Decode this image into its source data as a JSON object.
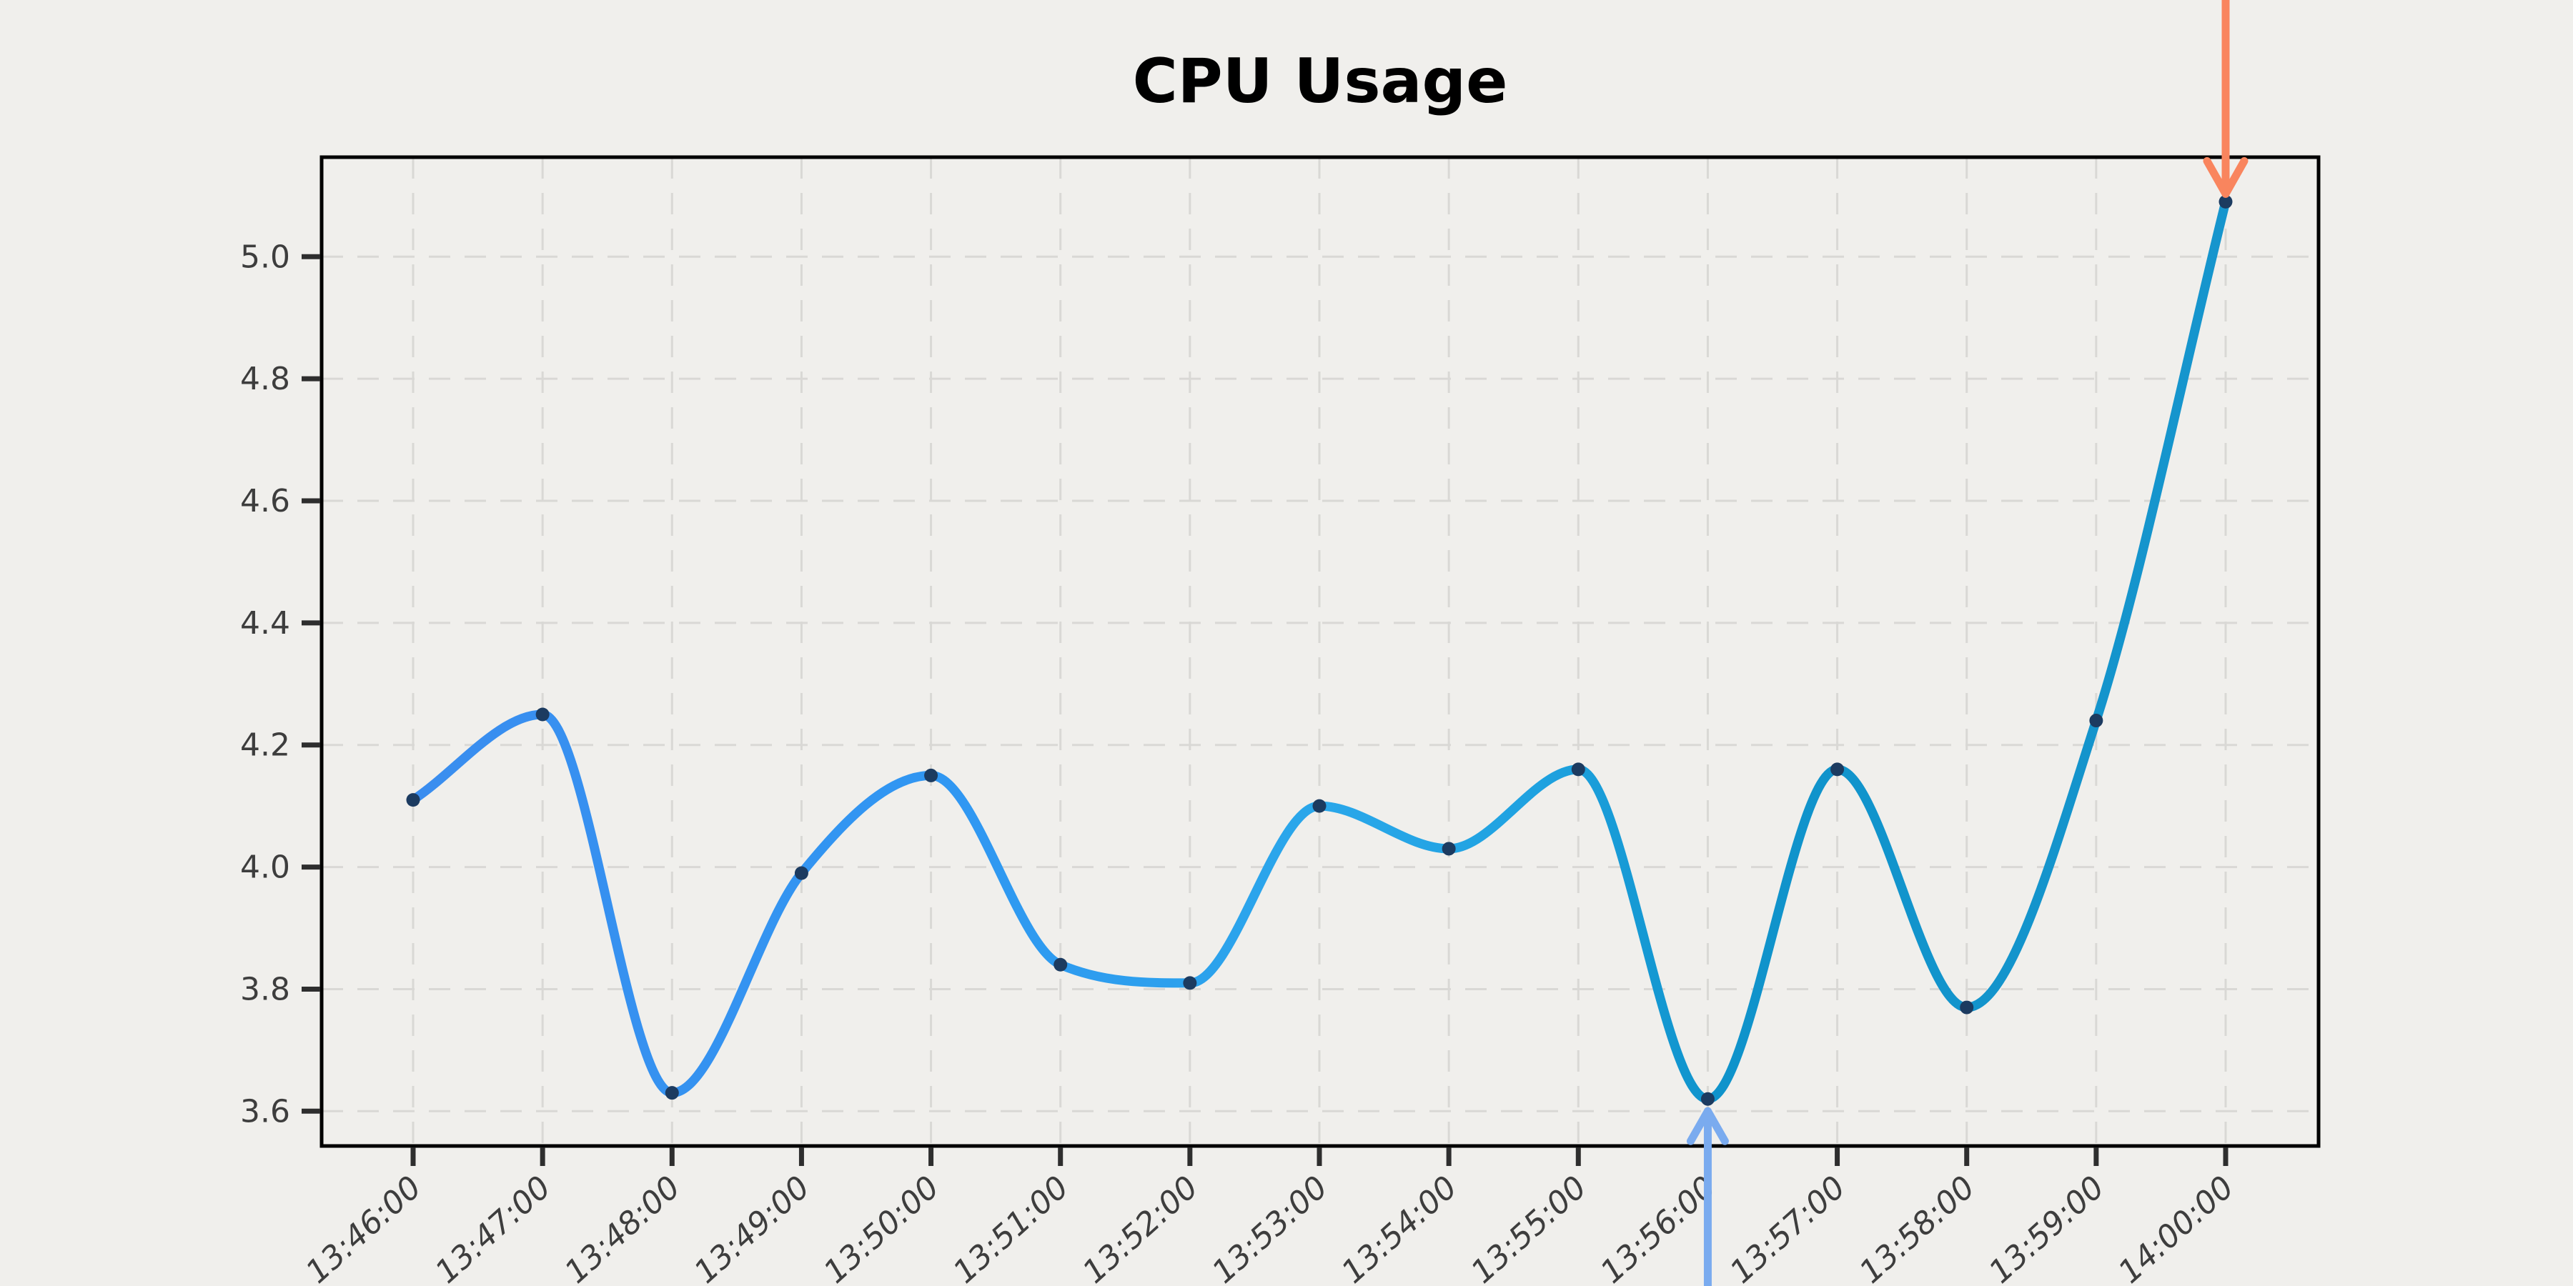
{
  "page": {
    "background_color": "#f0efec"
  },
  "chart_data": {
    "type": "line",
    "title": "CPU Usage",
    "xlabel": "",
    "ylabel": "",
    "x": [
      "13:46:00",
      "13:47:00",
      "13:48:00",
      "13:49:00",
      "13:50:00",
      "13:51:00",
      "13:52:00",
      "13:53:00",
      "13:54:00",
      "13:55:00",
      "13:56:00",
      "13:57:00",
      "13:58:00",
      "13:59:00",
      "14:00:00"
    ],
    "series": [
      {
        "name": "cpu_usage",
        "values": [
          4.11,
          4.25,
          3.63,
          3.99,
          4.15,
          3.84,
          3.81,
          4.1,
          4.03,
          4.16,
          3.62,
          4.16,
          3.77,
          4.24,
          5.09
        ]
      }
    ],
    "yticks": [
      3.6,
      3.8,
      4.0,
      4.2,
      4.4,
      4.6,
      4.8,
      5.0
    ],
    "ylim": [
      3.543,
      5.163
    ],
    "grid": true,
    "grid_style": "dashed",
    "legend": false,
    "smoothing": "monotone-cubic",
    "colors": {
      "line_gradient_stops": [
        [
          0.0,
          "#3a8def"
        ],
        [
          0.3,
          "#3097f2"
        ],
        [
          0.5,
          "#2aa7ea"
        ],
        [
          0.62,
          "#1fa2e0"
        ],
        [
          0.72,
          "#0f93cb"
        ],
        [
          1.0,
          "#1695cd"
        ]
      ],
      "marker": "#1c3b60",
      "axis_frame": "#000000",
      "tick": "#2e2e2e",
      "tick_label": "#3d3d3d",
      "grid_line": "#d9d8d5",
      "background": "#f0efec"
    },
    "annotations": [
      {
        "name": "peak-arrow",
        "x": "14:00:00",
        "x_index": 14,
        "direction": "down",
        "from_edge": "top",
        "color": "#f9855e"
      },
      {
        "name": "low-arrow",
        "x": "13:56:00",
        "x_index": 10,
        "direction": "up",
        "from_edge": "bottom",
        "color": "#7aabef"
      }
    ]
  }
}
